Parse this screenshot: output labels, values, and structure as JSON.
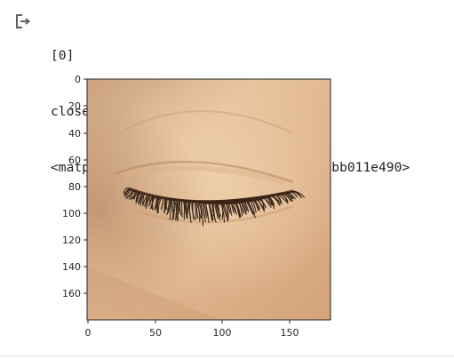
{
  "output": {
    "icon": "output-redirect-icon",
    "lines": [
      "[0]",
      "closes",
      "<matplotlib.image.AxesImage at 0x7fbbb011e490>"
    ]
  },
  "plot": {
    "y_ticks": [
      "0",
      "20",
      "40",
      "60",
      "80",
      "100",
      "120",
      "140",
      "160"
    ],
    "x_ticks": [
      "0",
      "50",
      "100",
      "150"
    ],
    "image_content": "closed-eye-photo",
    "colors": {
      "skin_light": "#eac8a2",
      "skin_mid": "#d8a97c",
      "skin_shadow": "#b98862",
      "lash": "#2a1a12"
    }
  }
}
